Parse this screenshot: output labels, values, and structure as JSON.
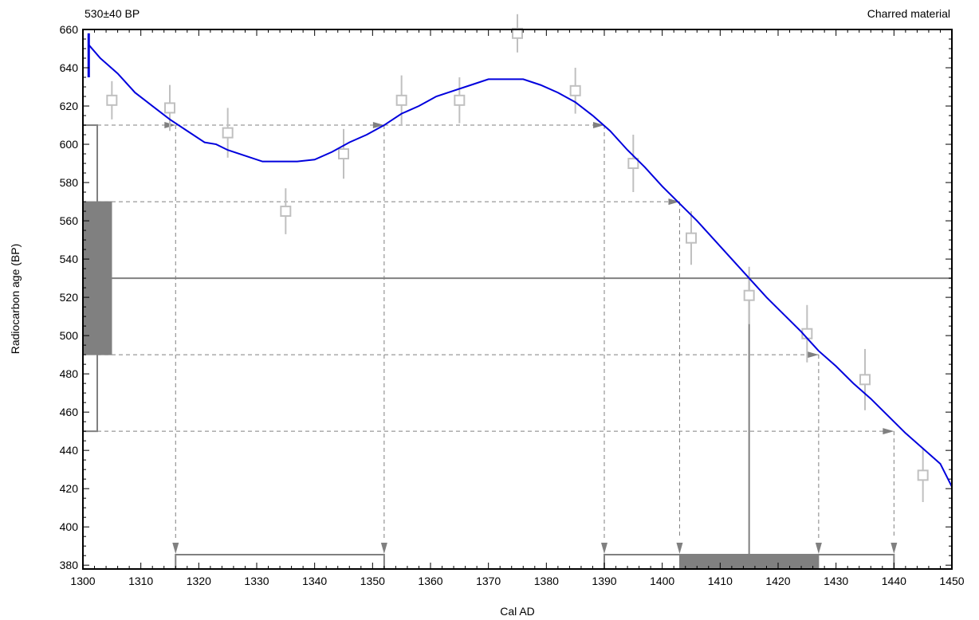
{
  "chart_data": {
    "type": "line",
    "top_left_label": "530±40 BP",
    "top_right_label": "Charred material",
    "xlabel": "Cal AD",
    "ylabel": "Radiocarbon age (BP)",
    "xlim": [
      1300,
      1450
    ],
    "ylim": [
      378,
      660
    ],
    "x_ticks": [
      1300,
      1310,
      1320,
      1330,
      1340,
      1350,
      1360,
      1370,
      1380,
      1390,
      1400,
      1410,
      1420,
      1430,
      1440,
      1450
    ],
    "y_ticks": [
      380,
      400,
      420,
      440,
      460,
      480,
      500,
      520,
      540,
      560,
      580,
      600,
      620,
      640,
      660
    ],
    "grid": false,
    "calibration_curve": {
      "color": "#0000dd",
      "x": [
        1301,
        1303,
        1306,
        1309,
        1312,
        1315,
        1318,
        1321,
        1323,
        1325,
        1328,
        1331,
        1334,
        1337,
        1340,
        1343,
        1346,
        1349,
        1352,
        1355,
        1358,
        1361,
        1364,
        1367,
        1370,
        1373,
        1376,
        1379,
        1382,
        1385,
        1388,
        1391,
        1394,
        1397,
        1400,
        1403,
        1406,
        1409,
        1412,
        1415,
        1418,
        1421,
        1424,
        1427,
        1430,
        1433,
        1436,
        1439,
        1442,
        1445,
        1448,
        1450
      ],
      "y": [
        652,
        645,
        637,
        627,
        620,
        613,
        607,
        601,
        600,
        597,
        594,
        591,
        591,
        591,
        592,
        596,
        601,
        605,
        610,
        616,
        620,
        625,
        628,
        631,
        634,
        634,
        634,
        631,
        627,
        622,
        615,
        607,
        597,
        588,
        578,
        569,
        560,
        550,
        540,
        530,
        520,
        511,
        502,
        492,
        484,
        475,
        467,
        458,
        449,
        441,
        433,
        421
      ],
      "initial_segment": {
        "x": 1301,
        "y_from": 635,
        "y_to": 658
      }
    },
    "data_points": {
      "color": "#c0c0c0",
      "x": [
        1305,
        1315,
        1325,
        1335,
        1345,
        1355,
        1365,
        1375,
        1385,
        1395,
        1405,
        1415,
        1425,
        1435,
        1445
      ],
      "y": [
        623,
        619,
        606,
        565,
        595,
        623,
        623,
        658,
        628,
        590,
        551,
        521,
        501,
        477,
        427
      ],
      "err": [
        10,
        12,
        13,
        12,
        13,
        13,
        12,
        10,
        12,
        15,
        14,
        15,
        15,
        16,
        14
      ]
    },
    "measurement": {
      "mean": 530,
      "sigma1": [
        490,
        570
      ],
      "sigma2": [
        450,
        610
      ]
    },
    "intercepts": {
      "sigma2_upper_y": 610,
      "sigma2_upper_x": [
        1316,
        1352,
        1390
      ],
      "sigma1_upper_y": 570,
      "sigma1_upper_x": [
        1403
      ],
      "sigma1_lower_y": 490,
      "sigma1_lower_x": [
        1427
      ],
      "sigma2_lower_y": 450,
      "sigma2_lower_x": [
        1440
      ],
      "mean_intercept_x": 1415
    },
    "calibrated_ranges": {
      "sigma2": [
        [
          1316,
          1352
        ],
        [
          1390,
          1440
        ]
      ],
      "sigma1": [
        [
          1403,
          1427
        ]
      ]
    }
  }
}
